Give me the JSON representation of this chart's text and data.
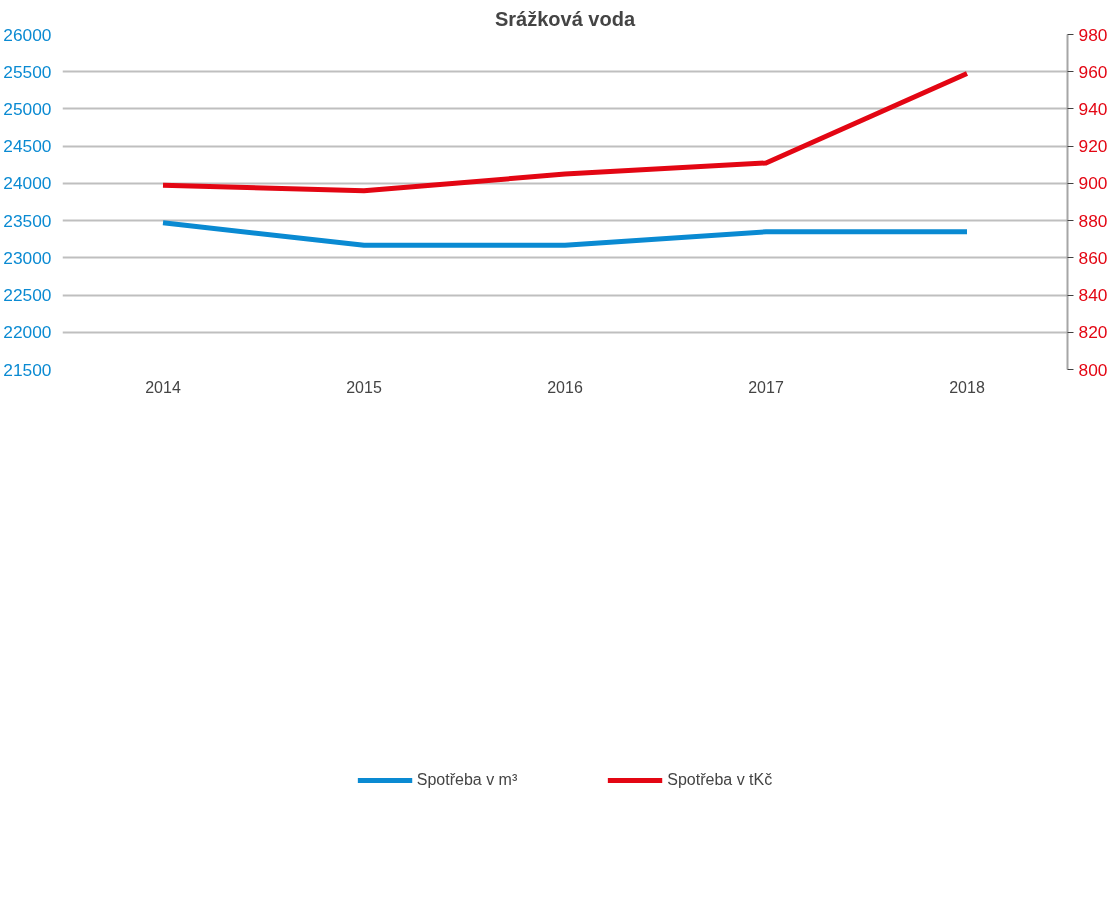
{
  "chart_data": {
    "type": "line",
    "title": "Srážková voda",
    "categories": [
      "2014",
      "2015",
      "2016",
      "2017",
      "2018"
    ],
    "series": [
      {
        "name": "Spotřeba v m³",
        "color": "#0a8ad2",
        "values": [
          23470,
          23170,
          23170,
          23350,
          23350
        ]
      },
      {
        "name": "Spotřeba v tKč",
        "color": "#e30613",
        "values": [
          899,
          896,
          905,
          911,
          959
        ],
        "axis": "y2"
      }
    ],
    "ylim": [
      21500,
      26000
    ],
    "yticks": [
      21500,
      22000,
      22500,
      23000,
      23500,
      24000,
      24500,
      25000,
      25500,
      26000
    ],
    "y2lim": [
      800,
      980
    ],
    "y2ticks": [
      800,
      820,
      840,
      860,
      880,
      900,
      920,
      940,
      960,
      980
    ],
    "grid": "y",
    "legend": "bottom",
    "marker": "none",
    "line_style": "solid"
  }
}
